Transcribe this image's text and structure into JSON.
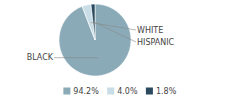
{
  "chart_data": {
    "type": "pie",
    "categories": [
      "BLACK",
      "WHITE",
      "HISPANIC"
    ],
    "values": [
      94.2,
      4.0,
      1.8
    ],
    "value_labels": [
      "94.2%",
      "4.0%",
      "1.8%"
    ],
    "colors": [
      "#8aaab8",
      "#c9dde6",
      "#2b4a5e"
    ],
    "legend": "bottom"
  }
}
